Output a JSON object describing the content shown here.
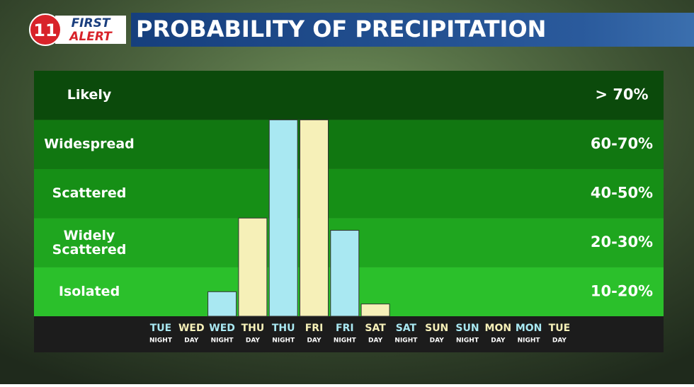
{
  "logo": {
    "number": "11",
    "line1": "FIRST",
    "line2": "ALERT"
  },
  "chart_data": {
    "type": "bar",
    "title": "PROBABILITY OF PRECIPITATION",
    "categories": [
      "TUE",
      "WED",
      "WED",
      "THU",
      "THU",
      "FRI",
      "FRI",
      "SAT",
      "SAT",
      "SUN",
      "SUN",
      "MON",
      "MON",
      "TUE"
    ],
    "category_parts": [
      "NIGHT",
      "DAY",
      "NIGHT",
      "DAY",
      "NIGHT",
      "DAY",
      "NIGHT",
      "DAY",
      "NIGHT",
      "DAY",
      "NIGHT",
      "DAY",
      "NIGHT",
      "DAY"
    ],
    "values": [
      0,
      0,
      10,
      40,
      80,
      80,
      35,
      5,
      0,
      0,
      0,
      0,
      0,
      0
    ],
    "colors": [
      "#a9e8f2",
      "#f6f0b8",
      "#a9e8f2",
      "#f6f0b8",
      "#a9e8f2",
      "#f6f0b8",
      "#a9e8f2",
      "#f6f0b8",
      "#a9e8f2",
      "#f6f0b8",
      "#a9e8f2",
      "#f6f0b8",
      "#a9e8f2",
      "#f6f0b8"
    ],
    "ylim": [
      0,
      100
    ],
    "bands": [
      {
        "name": "Isolated",
        "range": "10-20%",
        "color": "#2bc02b"
      },
      {
        "name": "Widely Scattered",
        "range": "20-30%",
        "color": "#1fa61f"
      },
      {
        "name": "Scattered",
        "range": "40-50%",
        "color": "#168f16"
      },
      {
        "name": "Widespread",
        "range": "60-70%",
        "color": "#117711"
      },
      {
        "name": "Likely",
        "range": "> 70%",
        "color": "#0b4a0b"
      }
    ]
  }
}
